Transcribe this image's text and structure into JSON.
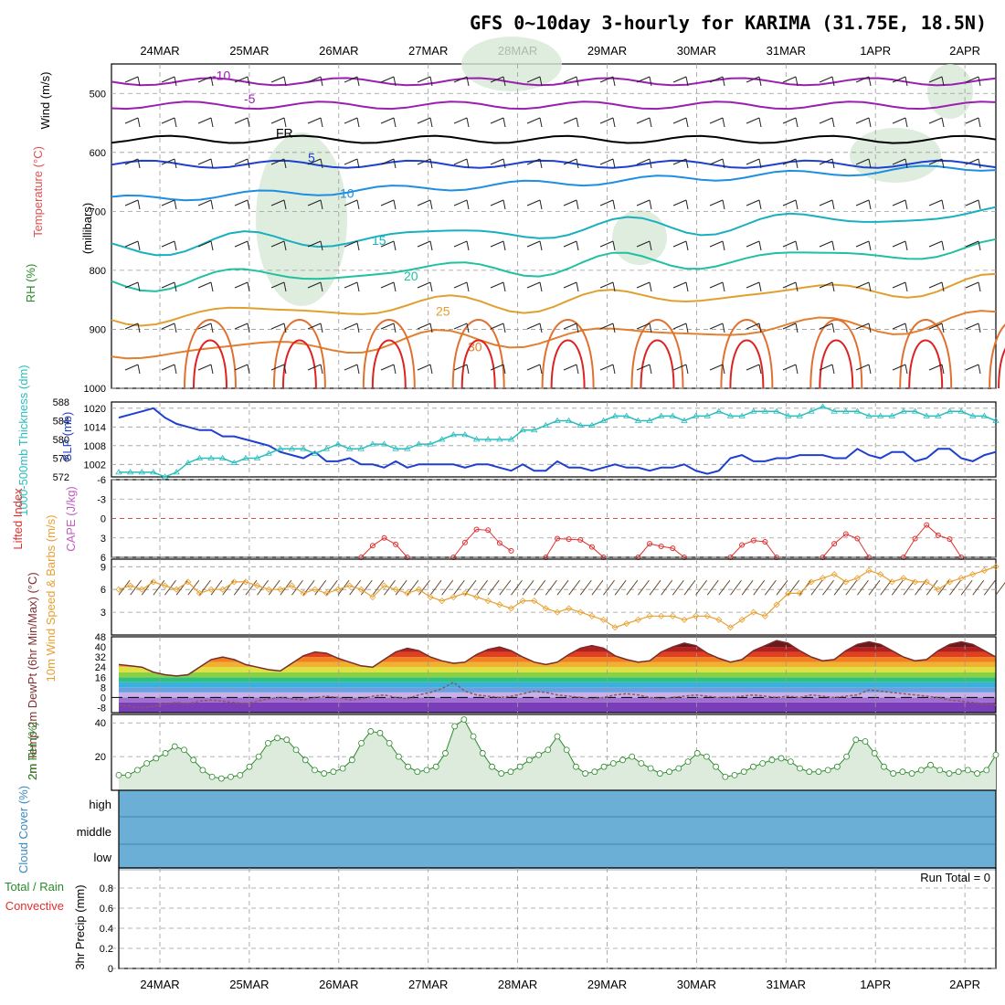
{
  "title": "GFS 0~10day 3-hourly for KARIMA (31.75E, 18.5N)",
  "dates": [
    "24MAR",
    "25MAR",
    "26MAR",
    "27MAR",
    "28MAR",
    "29MAR",
    "30MAR",
    "31MAR",
    "1APR",
    "2APR"
  ],
  "colors": {
    "slp": "#1f3fcf",
    "thickness": "#2bbdbd",
    "lifted_index": "#e03030",
    "cape": "#c060c0",
    "wind_speed": "#e8a030",
    "barbs": "#604020",
    "rh_line": "#2a8a2a",
    "rh_fill": "#dcebdc",
    "cloud": "#6baed6",
    "temp": "#7a2a2a",
    "dewpoint": "#8a5a5a"
  },
  "chart_data": [
    {
      "id": "upper_air",
      "type": "heatmap",
      "title": "GFS 0~10day 3-hourly for KARIMA (31.75E, 18.5N)",
      "ylabel": "(millibars)",
      "side_labels": [
        "Wind (m/s)",
        "Temperature (°C)",
        "RH (%)"
      ],
      "y_ticks": [
        500,
        600,
        700,
        800,
        900,
        1000
      ],
      "ylim": [
        450,
        1000
      ],
      "isotherm_labels": [
        "-10",
        "-5",
        "FR",
        "5",
        "10",
        "15",
        "20",
        "25",
        "30"
      ],
      "rh_labels": [
        "10",
        "30"
      ],
      "isotherm_levels_mb": [
        {
          "label": "-10",
          "p": 480
        },
        {
          "label": "-5",
          "p": 520
        },
        {
          "label": "FR",
          "p": 578
        },
        {
          "label": "5",
          "p": 620
        },
        {
          "label": "10",
          "p": 680
        },
        {
          "label": "15",
          "p": 760
        },
        {
          "label": "20",
          "p": 820
        },
        {
          "label": "25",
          "p": 880
        },
        {
          "label": "30",
          "p": 940
        }
      ]
    },
    {
      "id": "slp_thickness",
      "type": "line",
      "left_label": "1000-500mb Thickness (dm)",
      "right_label": "SLP (mb)",
      "left_ticks": [
        572,
        576,
        580,
        584,
        588
      ],
      "left_ylim": [
        572,
        588
      ],
      "right_ticks": [
        1002,
        1008,
        1014,
        1020
      ],
      "right_ylim": [
        998,
        1022
      ],
      "series": [
        {
          "name": "SLP (mb)",
          "values": [
            1017,
            1018,
            1019,
            1020,
            1017,
            1015,
            1014,
            1013,
            1013,
            1011,
            1011,
            1010,
            1009,
            1008,
            1006,
            1005,
            1004,
            1006,
            1003,
            1003,
            1004,
            1002,
            1002,
            1001,
            1003,
            1001,
            1002,
            1002,
            1002,
            1002,
            1001,
            1002,
            1002,
            1001,
            1000,
            1002,
            1000,
            1000,
            1003,
            1001,
            1001,
            1000,
            1001,
            1002,
            1001,
            1001,
            1000,
            1001,
            1001,
            1002,
            1000,
            999,
            1000,
            1004,
            1005,
            1003,
            1003,
            1004,
            1004,
            1005,
            1005,
            1005,
            1004,
            1004,
            1007,
            1005,
            1004,
            1006,
            1006,
            1003,
            1004,
            1007,
            1007,
            1004,
            1003,
            1005,
            1006
          ]
        },
        {
          "name": "1000-500mb Thickness (dm)",
          "values": [
            573,
            573,
            573,
            573,
            572,
            573,
            575,
            576,
            576,
            576,
            575,
            576,
            576,
            577,
            578,
            578,
            578,
            577,
            578,
            579,
            578,
            578,
            579,
            579,
            578,
            578,
            579,
            579,
            580,
            581,
            581,
            580,
            580,
            580,
            580,
            582,
            582,
            583,
            584,
            584,
            583,
            583,
            584,
            585,
            585,
            584,
            584,
            585,
            585,
            584,
            585,
            585,
            586,
            585,
            585,
            586,
            586,
            586,
            585,
            585,
            586,
            587,
            586,
            586,
            586,
            585,
            585,
            585,
            586,
            586,
            585,
            585,
            586,
            586,
            585,
            585,
            584
          ]
        }
      ]
    },
    {
      "id": "stability",
      "type": "line",
      "label_left": "Lifted Index",
      "label_right": "CAPE (J/kg)",
      "y_ticks": [
        -6,
        -3,
        0,
        3,
        6
      ],
      "y_tick_labels": [
        "-6",
        "-3",
        "0",
        "3",
        "6"
      ],
      "ylim": [
        -6,
        6
      ],
      "series": [
        {
          "name": "Lifted Index",
          "segments": [
            {
              "start": 21,
              "values": [
                6,
                4.2,
                3.0,
                4.0,
                6
              ]
            },
            {
              "start": 29,
              "values": [
                6,
                3.7,
                1.7,
                1.8,
                3.8,
                5
              ]
            },
            {
              "start": 37,
              "values": [
                6,
                3.1,
                3.2,
                3.3,
                4.4,
                6
              ]
            },
            {
              "start": 45,
              "values": [
                6,
                3.9,
                4.3,
                4.6,
                6
              ]
            },
            {
              "start": 53,
              "values": [
                6,
                4.1,
                3.4,
                3.6,
                6
              ]
            },
            {
              "start": 61,
              "values": [
                6,
                3.9,
                2.4,
                3.1,
                6
              ]
            },
            {
              "start": 68,
              "values": [
                6,
                3.1,
                1.0,
                2.6,
                3.2,
                6
              ]
            }
          ]
        }
      ]
    },
    {
      "id": "surface_wind",
      "type": "line",
      "label": "10m Wind Speed & Barbs (m/s)",
      "y_ticks": [
        3,
        6,
        9
      ],
      "ylim": [
        0,
        10
      ],
      "series": [
        {
          "name": "Speed",
          "values": [
            6,
            6.5,
            6,
            7,
            6.5,
            6,
            7,
            5.5,
            6,
            6,
            7,
            7,
            6.5,
            6,
            6,
            6.5,
            5.5,
            6,
            5.5,
            6,
            6.5,
            6,
            5,
            6.5,
            6,
            5.5,
            6,
            5,
            4.5,
            5,
            5.5,
            5,
            4.5,
            4,
            3.5,
            4.5,
            4.5,
            3.5,
            3,
            3.5,
            3,
            2.5,
            2,
            1,
            1.5,
            2,
            2.5,
            2.5,
            2.5,
            2,
            2.5,
            2.5,
            2,
            1,
            2,
            3,
            2.5,
            4,
            5.5,
            5.5,
            7,
            7.5,
            8,
            7,
            7.5,
            8.5,
            8,
            7,
            7.5,
            7,
            7,
            6,
            7,
            7.5,
            8,
            8.5,
            9
          ]
        }
      ]
    },
    {
      "id": "surface_temp",
      "type": "area",
      "label": "2m Temp 2m DewPt (6hr Min/Max) (°C)",
      "y_ticks": [
        -8,
        0,
        8,
        16,
        24,
        32,
        40,
        48
      ],
      "ylim": [
        -12,
        48
      ],
      "series": [
        {
          "name": "2m Temp",
          "values": [
            26,
            25,
            24,
            20,
            18,
            17,
            18,
            24,
            30,
            32,
            30,
            26,
            24,
            22,
            21,
            27,
            33,
            36,
            35,
            31,
            28,
            25,
            24,
            30,
            36,
            39,
            37,
            32,
            29,
            27,
            28,
            34,
            38,
            40,
            37,
            32,
            28,
            26,
            28,
            34,
            39,
            41,
            39,
            33,
            30,
            28,
            29,
            36,
            40,
            43,
            41,
            35,
            31,
            28,
            30,
            37,
            41,
            45,
            43,
            37,
            32,
            29,
            30,
            37,
            42,
            44,
            42,
            37,
            32,
            29,
            30,
            37,
            42,
            44,
            42,
            37,
            32
          ]
        },
        {
          "name": "2m DewPt",
          "values": [
            -6,
            -7,
            -8,
            -7,
            -5,
            -4,
            -5,
            -3,
            -2,
            -3,
            -4,
            -5,
            -3,
            -1,
            0,
            -1,
            -2,
            0,
            1,
            0,
            -2,
            -1,
            1,
            2,
            0,
            -1,
            2,
            4,
            7,
            12,
            5,
            2,
            1,
            0,
            1,
            3,
            5,
            4,
            2,
            1,
            0,
            -1,
            0,
            2,
            3,
            2,
            0,
            -1,
            0,
            1,
            2,
            1,
            0,
            0,
            1,
            2,
            1,
            0,
            1,
            0,
            2,
            1,
            0,
            1,
            2,
            6,
            5,
            4,
            3,
            2,
            1,
            0,
            -2,
            -3,
            -4,
            -5,
            -6
          ]
        }
      ]
    },
    {
      "id": "rh2m",
      "type": "area",
      "label": "2m RH (%)",
      "y_ticks": [
        20,
        40
      ],
      "ylim": [
        0,
        45
      ],
      "series": [
        {
          "name": "2m RH",
          "values": [
            9,
            9,
            12,
            16,
            19,
            22,
            26,
            24,
            18,
            12,
            8,
            7,
            8,
            9,
            14,
            20,
            28,
            31,
            30,
            24,
            18,
            12,
            10,
            11,
            13,
            18,
            28,
            35,
            34,
            28,
            20,
            14,
            11,
            12,
            14,
            22,
            38,
            42,
            32,
            22,
            14,
            10,
            11,
            14,
            18,
            21,
            24,
            32,
            24,
            14,
            10,
            11,
            14,
            16,
            18,
            20,
            16,
            13,
            10,
            11,
            13,
            17,
            22,
            20,
            14,
            8,
            9,
            11,
            14,
            16,
            18,
            19,
            17,
            13,
            11,
            11,
            12,
            14,
            20,
            30,
            29,
            22,
            14,
            10,
            11,
            10,
            12,
            15,
            12,
            10,
            11,
            12,
            10,
            12,
            21
          ]
        }
      ]
    },
    {
      "id": "cloud_cover",
      "type": "bar",
      "label": "Cloud Cover (%)",
      "categories": [
        "high",
        "middle",
        "low"
      ],
      "note": "blue background = clear; white bars = cloud",
      "high_cloud": [
        0,
        0,
        0,
        0,
        0,
        0,
        0,
        0,
        0,
        0,
        0,
        0,
        0,
        0,
        0,
        0,
        0,
        0,
        0,
        0,
        0,
        0,
        0,
        0,
        0,
        0,
        0,
        0,
        0,
        0,
        0,
        0,
        0,
        0,
        0,
        0,
        0,
        0,
        0,
        0,
        0,
        0,
        0,
        0,
        0,
        0,
        0,
        0,
        0,
        0,
        0,
        0,
        0,
        0,
        0,
        0,
        0,
        0,
        0,
        0,
        0,
        0,
        0,
        0,
        0,
        0,
        0,
        0,
        0,
        0,
        0,
        0,
        0,
        0,
        0,
        0,
        0
      ]
    },
    {
      "id": "precip",
      "type": "bar",
      "label_total_rain": "Total / Rain",
      "label_convective": "Convective",
      "ylabel": "3hr Precip (mm)",
      "y_ticks": [
        0,
        0.2,
        0.4,
        0.6,
        0.8
      ],
      "y_tick_labels": [
        "0",
        "0.2",
        "0.4",
        "0.6",
        "0.8"
      ],
      "ylim": [
        0,
        1
      ],
      "run_total": "Run Total = 0",
      "values": []
    }
  ]
}
